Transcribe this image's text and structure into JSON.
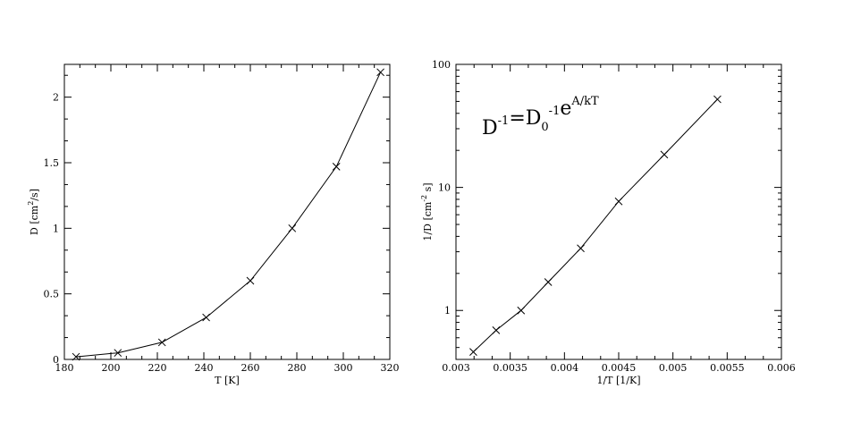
{
  "chart_data": [
    {
      "type": "line",
      "marker": "x-cross",
      "xlabel": "T [K]",
      "ylabel": "D [cm²/s]",
      "ylabel_parts": {
        "base": "D [cm",
        "sup": "2",
        "tail": "/s]"
      },
      "xlim": [
        180,
        320
      ],
      "ylim": [
        0,
        2.25
      ],
      "xticks": [
        180,
        200,
        220,
        240,
        260,
        280,
        300,
        320
      ],
      "xtick_labels": [
        "180",
        "200",
        "220",
        "240",
        "260",
        "280",
        "300",
        "320"
      ],
      "yticks": [
        0,
        0.5,
        1,
        1.5,
        2
      ],
      "ytick_labels": [
        "0",
        "0.5",
        "1",
        "1.5",
        "2"
      ],
      "series": [
        {
          "x": [
            185,
            203,
            222,
            241,
            260,
            278,
            297,
            316
          ],
          "y": [
            0.02,
            0.05,
            0.13,
            0.32,
            0.6,
            1.0,
            1.47,
            2.19
          ]
        }
      ],
      "grid": false
    },
    {
      "type": "line",
      "marker": "x-cross",
      "yscale": "log",
      "xlabel": "1/T [1/K]",
      "ylabel": "1/D [cm⁻²s]",
      "ylabel_parts": {
        "base": "1/D [cm",
        "sup": "-2",
        "tail": " s]"
      },
      "xlim": [
        0.003,
        0.006
      ],
      "ylim": [
        0.4,
        100
      ],
      "xticks": [
        0.003,
        0.0035,
        0.004,
        0.0045,
        0.005,
        0.0055,
        0.006
      ],
      "xtick_labels": [
        "0.003",
        "0.0035",
        "0.004",
        "0.0045",
        "0.005",
        "0.0055",
        "0.006"
      ],
      "yticks": [
        1,
        10,
        100
      ],
      "ytick_labels": [
        "1",
        "10",
        "100"
      ],
      "series": [
        {
          "x": [
            0.00316,
            0.00337,
            0.0036,
            0.00385,
            0.00415,
            0.0045,
            0.00492,
            0.00541
          ],
          "y": [
            0.46,
            0.69,
            1.0,
            1.7,
            3.2,
            7.7,
            18.5,
            52
          ]
        }
      ],
      "annotation": {
        "parts": [
          {
            "text": "D",
            "sup": "-1"
          },
          {
            "text": "=D",
            "sub": "0",
            "sup": "-1"
          },
          {
            "text": "e",
            "sup": "A/kT"
          }
        ]
      },
      "grid": false
    }
  ]
}
